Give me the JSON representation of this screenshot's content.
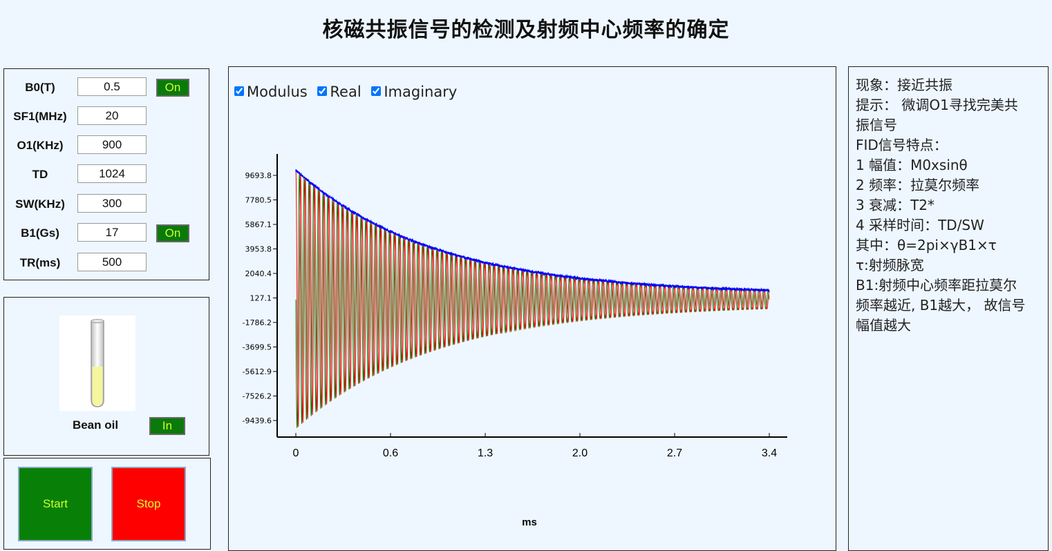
{
  "title": "核磁共振信号的检测及射频中心频率的确定",
  "params": [
    {
      "label": "B0(T)",
      "value": "0.5",
      "button": "On"
    },
    {
      "label": "SF1(MHz)",
      "value": "20"
    },
    {
      "label": "O1(KHz)",
      "value": "900"
    },
    {
      "label": "TD",
      "value": "1024"
    },
    {
      "label": "SW(KHz)",
      "value": "300"
    },
    {
      "label": "B1(Gs)",
      "value": "17",
      "button": "On"
    },
    {
      "label": "TR(ms)",
      "value": "500"
    }
  ],
  "sample": {
    "name": "Bean oil",
    "button": "In",
    "fill_color": "#f5f59a"
  },
  "controls": {
    "start": "Start",
    "stop": "Stop"
  },
  "legend": {
    "modulus": {
      "label": "Modulus",
      "checked": true,
      "color": "#0000ff"
    },
    "real": {
      "label": "Real",
      "checked": true,
      "color": "#ff0000"
    },
    "imaginary": {
      "label": "Imaginary",
      "checked": true,
      "color": "#008000"
    }
  },
  "info_lines": [
    "现象：接近共振",
    "提示： 微调O1寻找完美共",
    "振信号",
    "FID信号特点：",
    "1 幅值：M0xsinθ",
    "2 频率：拉莫尔频率",
    "3 衰减：T2*",
    "4 采样时间：TD/SW",
    "其中：θ=2pi×γB1×τ",
    "τ:射频脉宽",
    "B1:射频中心频率距拉莫尔",
    "频率越近, B1越大， 故信号",
    "幅值越大"
  ],
  "chart_data": {
    "type": "line",
    "xlabel": "ms",
    "ylabel": "",
    "x_ticks": [
      "0",
      "0.6",
      "1.3",
      "2.0",
      "2.7",
      "3.4"
    ],
    "y_ticks": [
      "9693.8",
      "7780.5",
      "5867.1",
      "3953.8",
      "2040.4",
      "127.1",
      "-1786.2",
      "-3699.5",
      "-5612.9",
      "-7526.2",
      "-9439.6"
    ],
    "xlim": [
      0,
      3.4
    ],
    "ylim": [
      -9439.6,
      9693.8
    ],
    "amplitude": 9700,
    "decay_T2_ms": 1.0,
    "oscillation_cycles": 100,
    "series": [
      {
        "name": "Modulus",
        "color": "#0000ff"
      },
      {
        "name": "Real",
        "color": "#ff0000"
      },
      {
        "name": "Imaginary",
        "color": "#008000"
      }
    ]
  }
}
